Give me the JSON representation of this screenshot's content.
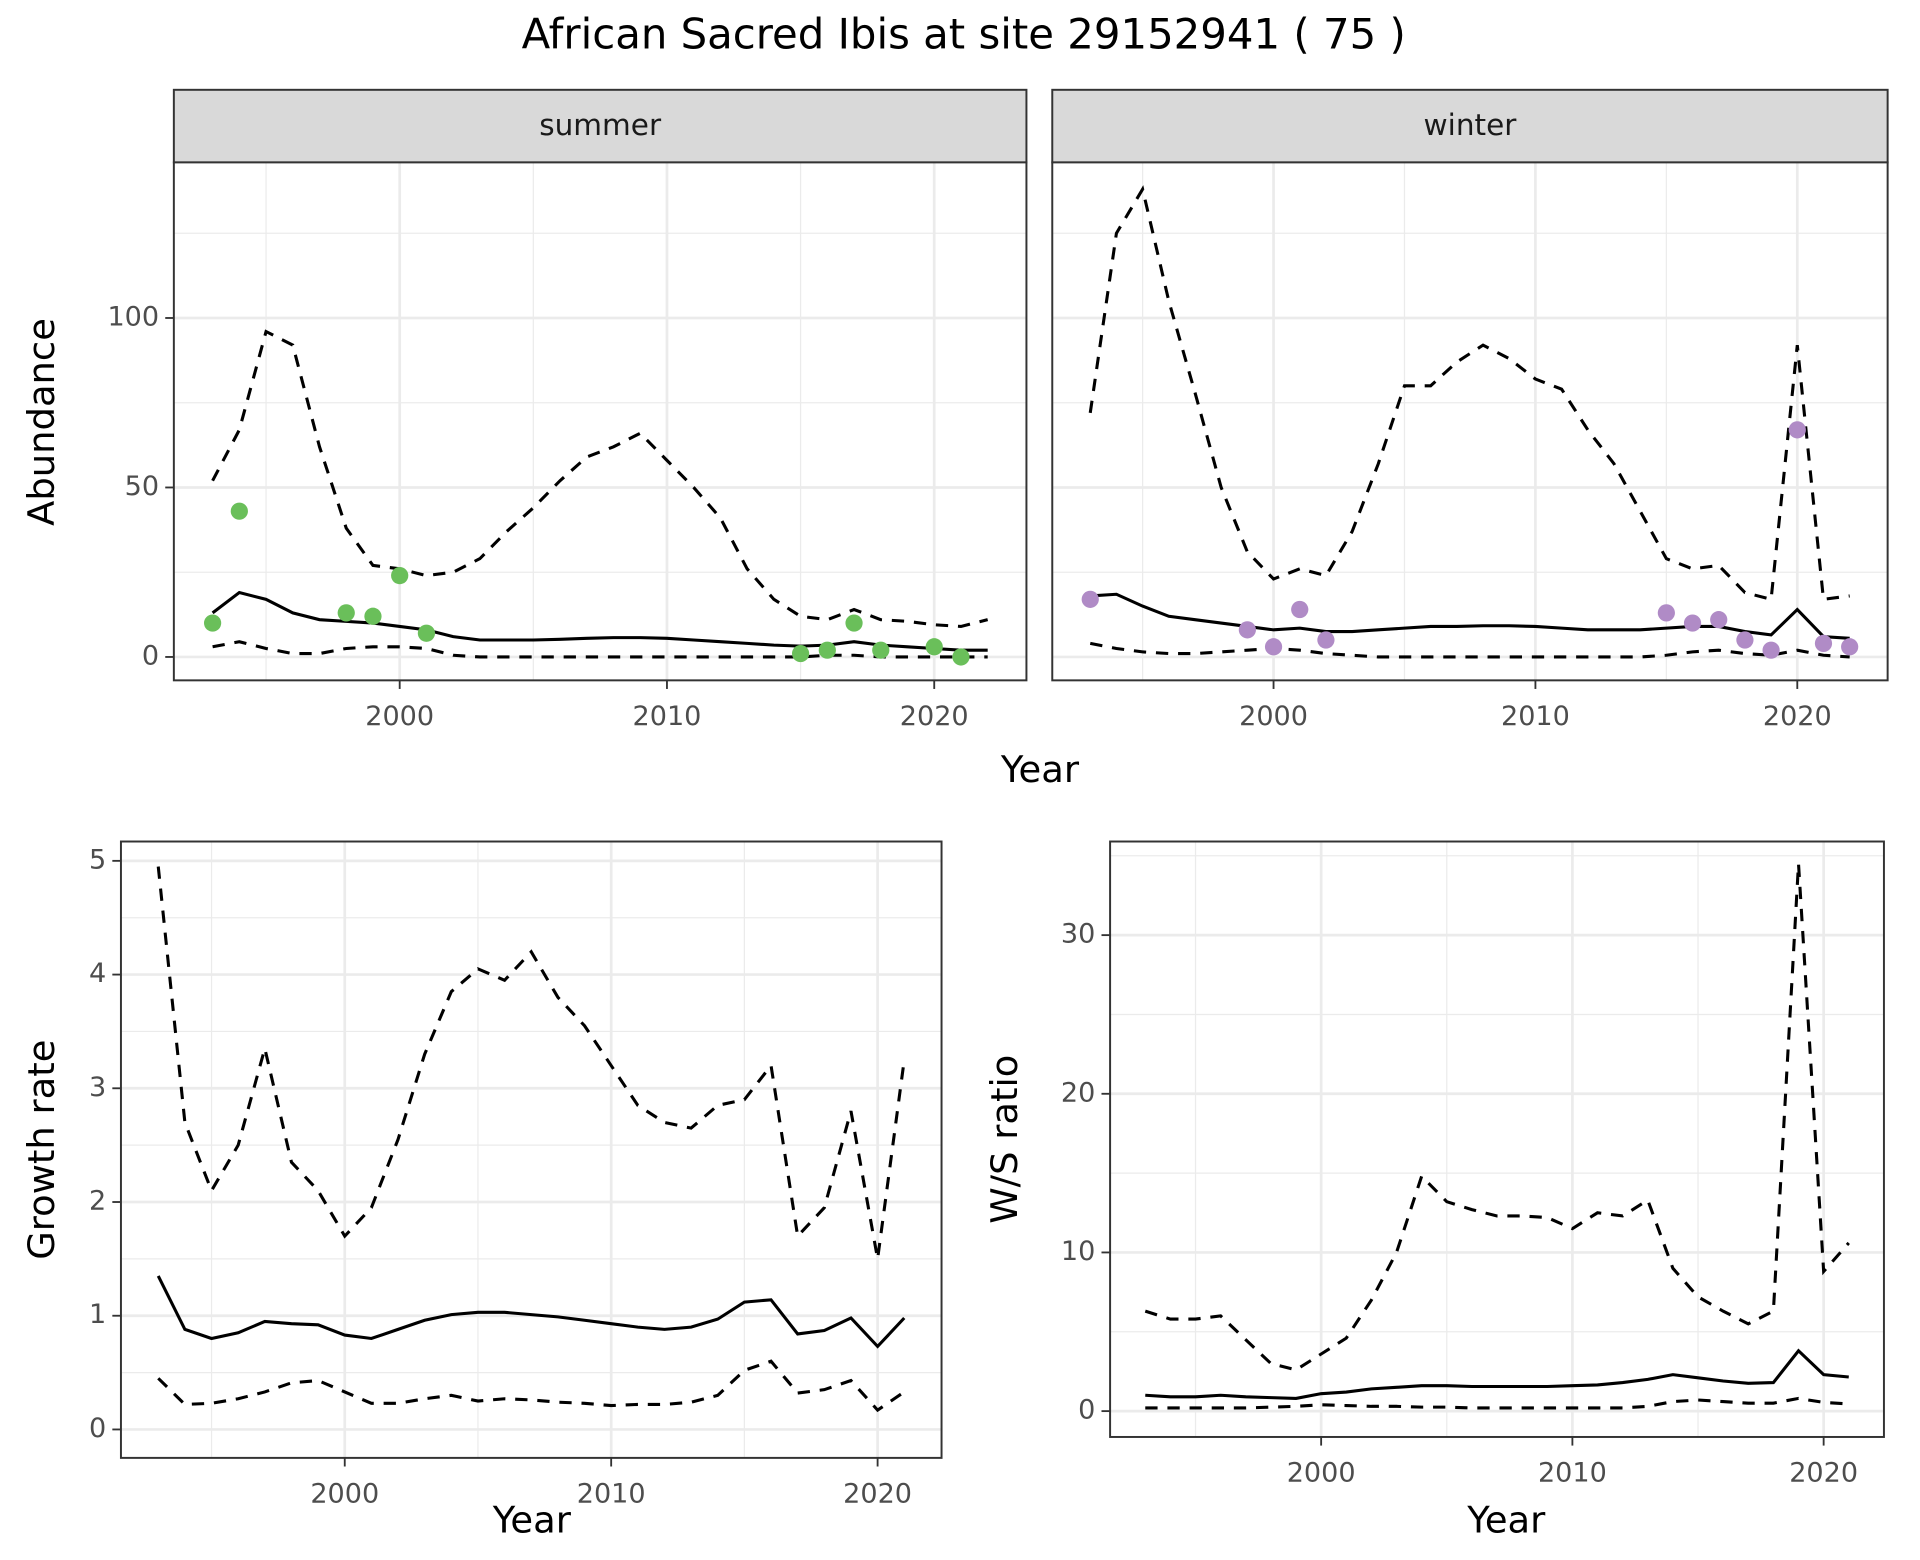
{
  "chart_data": [
    {
      "type": "line",
      "title": "African Sacred Ibis at site 29152941 ( 75 )",
      "x_label": "Year",
      "y_label": "Abundance",
      "xlim": [
        1991.55,
        2023.45
      ],
      "xticks": [
        2000,
        2010,
        2020
      ],
      "xminor": [
        1995,
        2005,
        2015
      ],
      "ylim": [
        -6.9,
        145.9
      ],
      "yticks": [
        0,
        50,
        100
      ],
      "yminor": [
        25,
        75,
        125
      ],
      "grid": true,
      "x": [
        1993,
        1994,
        1995,
        1996,
        1997,
        1998,
        1999,
        2000,
        2001,
        2002,
        2003,
        2004,
        2005,
        2006,
        2007,
        2008,
        2009,
        2010,
        2011,
        2012,
        2013,
        2014,
        2015,
        2016,
        2017,
        2018,
        2019,
        2020,
        2021,
        2022
      ],
      "facets": [
        {
          "label": "summer",
          "series": [
            {
              "style": "dashed",
              "color": "#000000",
              "values": [
                52,
                67,
                96,
                92,
                62,
                38,
                27,
                26,
                24,
                25,
                29,
                37,
                44,
                52,
                59,
                62,
                66,
                58,
                50,
                41,
                26,
                17,
                12,
                11,
                14,
                11,
                10.5,
                9.5,
                9,
                11
              ]
            },
            {
              "style": "solid",
              "color": "#000000",
              "values": [
                13,
                19,
                17,
                13,
                11,
                10.5,
                10,
                9,
                8,
                6,
                5,
                5,
                5,
                5.2,
                5.5,
                5.7,
                5.7,
                5.5,
                5,
                4.5,
                4,
                3.5,
                3.2,
                3.5,
                4.5,
                3.5,
                3,
                2.5,
                2,
                2
              ]
            },
            {
              "style": "dashed",
              "color": "#000000",
              "values": [
                3,
                4.5,
                2.5,
                1,
                1,
                2.5,
                3,
                3,
                2.5,
                0.5,
                0,
                0,
                0,
                0,
                0,
                0,
                0,
                0,
                0,
                0,
                0,
                0,
                0,
                0.5,
                0.5,
                0,
                0,
                0,
                0,
                0
              ]
            },
            {
              "style": "points",
              "color": "#6abf5a",
              "values": [
                10,
                43,
                null,
                null,
                null,
                13,
                12,
                24,
                7,
                null,
                null,
                null,
                null,
                null,
                null,
                null,
                null,
                null,
                null,
                null,
                null,
                null,
                1,
                2,
                10,
                2,
                null,
                3,
                0,
                null
              ]
            }
          ]
        },
        {
          "label": "winter",
          "series": [
            {
              "style": "dashed",
              "color": "#000000",
              "values": [
                72,
                125,
                138,
                105,
                78,
                50,
                31,
                23,
                26,
                24,
                37,
                57,
                80,
                80,
                87,
                92,
                88,
                82,
                79,
                67,
                57,
                43,
                29,
                26,
                27,
                19,
                17,
                92,
                17,
                18
              ]
            },
            {
              "style": "solid",
              "color": "#000000",
              "values": [
                18,
                18.5,
                15,
                12,
                11,
                10,
                9,
                8,
                8.5,
                7.5,
                7.5,
                8,
                8.5,
                9,
                9,
                9.2,
                9.2,
                9,
                8.5,
                8,
                8,
                8,
                8.5,
                9,
                9,
                7.5,
                6.5,
                14,
                6,
                5.5
              ]
            },
            {
              "style": "dashed",
              "color": "#000000",
              "values": [
                4,
                2.5,
                1.5,
                1,
                1,
                1.5,
                2,
                2.5,
                2,
                1,
                0.5,
                0,
                0,
                0,
                0,
                0,
                0,
                0,
                0,
                0,
                0,
                0,
                0.5,
                1.5,
                2,
                1,
                0.5,
                2,
                0.5,
                0
              ]
            },
            {
              "style": "points",
              "color": "#b08bc6",
              "values": [
                17,
                null,
                null,
                null,
                null,
                null,
                8,
                3,
                14,
                5,
                null,
                null,
                null,
                null,
                null,
                null,
                null,
                null,
                null,
                null,
                null,
                null,
                13,
                10,
                11,
                5,
                2,
                67,
                4,
                3
              ]
            }
          ]
        }
      ]
    },
    {
      "type": "line",
      "x_label": "Year",
      "y_label": "Growth rate",
      "xlim": [
        1991.6,
        2022.4
      ],
      "xticks": [
        2000,
        2010,
        2020
      ],
      "xminor": [
        1995,
        2005,
        2015
      ],
      "ylim": [
        -0.25,
        5.17
      ],
      "yticks": [
        0,
        1,
        2,
        3,
        4,
        5
      ],
      "yminor": [
        0.5,
        1.5,
        2.5,
        3.5,
        4.5
      ],
      "grid": true,
      "x": [
        1993,
        1994,
        1995,
        1996,
        1997,
        1998,
        1999,
        2000,
        2001,
        2002,
        2003,
        2004,
        2005,
        2006,
        2007,
        2008,
        2009,
        2010,
        2011,
        2012,
        2013,
        2014,
        2015,
        2016,
        2017,
        2018,
        2019,
        2020,
        2021
      ],
      "series": [
        {
          "style": "dashed",
          "color": "#000000",
          "values": [
            4.95,
            2.7,
            2.1,
            2.5,
            3.35,
            2.35,
            2.1,
            1.7,
            1.95,
            2.55,
            3.3,
            3.85,
            4.05,
            3.95,
            4.2,
            3.8,
            3.55,
            3.2,
            2.85,
            2.7,
            2.65,
            2.85,
            2.9,
            3.2,
            1.7,
            1.95,
            2.8,
            1.5,
            3.25
          ]
        },
        {
          "style": "solid",
          "color": "#000000",
          "values": [
            1.35,
            0.88,
            0.8,
            0.85,
            0.95,
            0.93,
            0.92,
            0.83,
            0.8,
            0.88,
            0.96,
            1.01,
            1.03,
            1.03,
            1.01,
            0.99,
            0.96,
            0.93,
            0.9,
            0.88,
            0.9,
            0.97,
            1.12,
            1.14,
            0.84,
            0.87,
            0.98,
            0.73,
            0.98
          ]
        },
        {
          "style": "dashed",
          "color": "#000000",
          "values": [
            0.45,
            0.22,
            0.23,
            0.27,
            0.33,
            0.41,
            0.43,
            0.33,
            0.23,
            0.23,
            0.27,
            0.3,
            0.25,
            0.27,
            0.26,
            0.24,
            0.23,
            0.21,
            0.22,
            0.22,
            0.24,
            0.3,
            0.52,
            0.6,
            0.32,
            0.35,
            0.43,
            0.17,
            0.33
          ]
        }
      ]
    },
    {
      "type": "line",
      "x_label": "Year",
      "y_label": "W/S ratio",
      "xlim": [
        1991.6,
        2022.4
      ],
      "xticks": [
        2000,
        2010,
        2020
      ],
      "xminor": [
        1995,
        2005,
        2015
      ],
      "ylim": [
        -1.63,
        35.9
      ],
      "yticks": [
        0,
        10,
        20,
        30
      ],
      "yminor": [
        5,
        15,
        25,
        35
      ],
      "grid": true,
      "x": [
        1993,
        1994,
        1995,
        1996,
        1997,
        1998,
        1999,
        2000,
        2001,
        2002,
        2003,
        2004,
        2005,
        2006,
        2007,
        2008,
        2009,
        2010,
        2011,
        2012,
        2013,
        2014,
        2015,
        2016,
        2017,
        2018,
        2019,
        2020,
        2021
      ],
      "series": [
        {
          "style": "dashed",
          "color": "#000000",
          "values": [
            6.3,
            5.8,
            5.8,
            6,
            4.5,
            3,
            2.6,
            3.6,
            4.6,
            7,
            10,
            14.8,
            13.2,
            12.7,
            12.3,
            12.3,
            12.2,
            11.5,
            12.5,
            12.3,
            13.3,
            9,
            7.2,
            6.3,
            5.5,
            6.3,
            34.5,
            8.8,
            10.6
          ]
        },
        {
          "style": "solid",
          "color": "#000000",
          "values": [
            1,
            0.9,
            0.9,
            1,
            0.9,
            0.85,
            0.8,
            1.1,
            1.2,
            1.4,
            1.5,
            1.6,
            1.6,
            1.55,
            1.55,
            1.55,
            1.55,
            1.6,
            1.65,
            1.8,
            2,
            2.3,
            2.1,
            1.9,
            1.75,
            1.8,
            3.8,
            2.3,
            2.15
          ]
        },
        {
          "style": "dashed",
          "color": "#000000",
          "values": [
            0.2,
            0.2,
            0.2,
            0.2,
            0.2,
            0.25,
            0.3,
            0.4,
            0.35,
            0.3,
            0.3,
            0.25,
            0.25,
            0.2,
            0.2,
            0.2,
            0.2,
            0.2,
            0.2,
            0.2,
            0.3,
            0.6,
            0.7,
            0.6,
            0.5,
            0.5,
            0.8,
            0.55,
            0.45
          ]
        }
      ]
    }
  ]
}
